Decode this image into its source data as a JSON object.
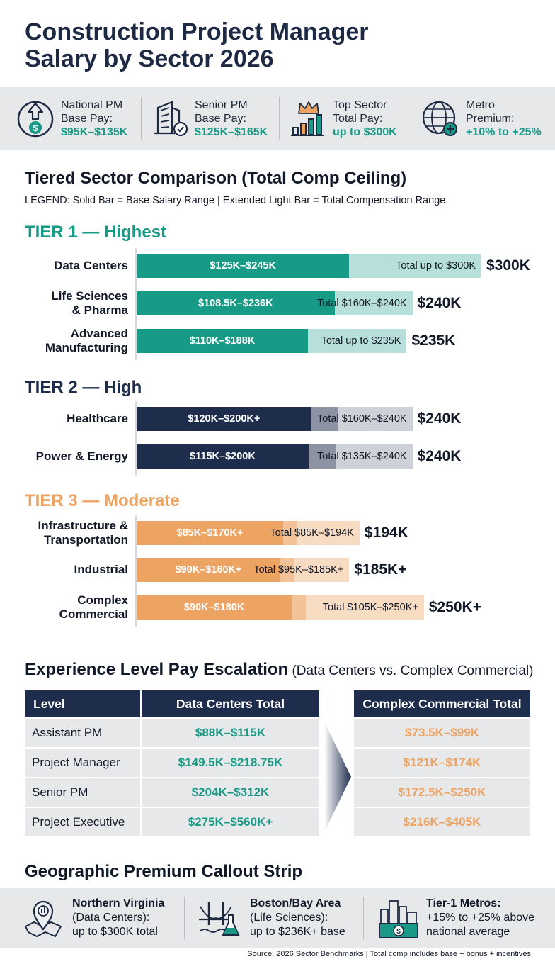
{
  "title": {
    "line1": "Construction Project Manager",
    "line2": "Salary by Sector 2026"
  },
  "stats": [
    {
      "icon": "money-up-icon",
      "l1": "National PM",
      "l2": "Base Pay:",
      "value": "$95K–$135K"
    },
    {
      "icon": "building-check-icon",
      "l1": "Senior PM",
      "l2": "Base Pay:",
      "value": "$125K–$165K"
    },
    {
      "icon": "crown-bar-chart-icon",
      "l1": "Top Sector",
      "l2": "Total Pay:",
      "value": "up to $300K"
    },
    {
      "icon": "globe-plus-icon",
      "l1": "Metro",
      "l2": "Premium:",
      "value": "+10% to +25%"
    }
  ],
  "chart_section": {
    "title": "Tiered Sector Comparison (Total Comp Ceiling)",
    "legend": "LEGEND: Solid Bar = Base Salary Range  |  Extended Light Bar = Total Compensation Range"
  },
  "colors": {
    "tier1": "#189b86",
    "tier1_light": "#b7e0da",
    "tier2": "#1f2d4d",
    "tier2_mid": "#8d93a3",
    "tier2_light": "#cfd1d8",
    "tier3": "#eda463",
    "tier3_light": "#f8dcc2"
  },
  "chart_data": {
    "type": "bar",
    "orientation": "horizontal",
    "unit": "$K",
    "tiers": [
      {
        "name": "TIER 1 — Highest",
        "color": "#189b86",
        "rows": [
          {
            "sector": [
              "Data Centers"
            ],
            "base": [
              125,
              245
            ],
            "total": [
              0,
              300
            ],
            "base_label": "$125K–$245K",
            "total_label": "Total up to $300K",
            "cap": "$300K"
          },
          {
            "sector": [
              "Life Sciences",
              "& Pharma"
            ],
            "base": [
              108.5,
              236
            ],
            "total": [
              160,
              240
            ],
            "base_label": "$108.5K–$236K",
            "total_label": "Total $160K–$240K",
            "cap": "$240K"
          },
          {
            "sector": [
              "Advanced",
              "Manufacturing"
            ],
            "base": [
              110,
              188
            ],
            "total": [
              0,
              235
            ],
            "base_label": "$110K–$188K",
            "total_label": "Total up to $235K",
            "cap": "$235K"
          }
        ]
      },
      {
        "name": "TIER 2 — High",
        "color": "#1f2d4d",
        "rows": [
          {
            "sector": [
              "Healthcare"
            ],
            "base": [
              120,
              200
            ],
            "total": [
              160,
              240
            ],
            "base_label": "$120K–$200K+",
            "total_label": "Total $160K–$240K",
            "cap": "$240K"
          },
          {
            "sector": [
              "Power & Energy"
            ],
            "base": [
              115,
              200
            ],
            "total": [
              135,
              240
            ],
            "base_label": "$115K–$200K",
            "total_label": "Total $135K–$240K",
            "cap": "$240K"
          }
        ]
      },
      {
        "name": "TIER 3 — Moderate",
        "color": "#eda463",
        "rows": [
          {
            "sector": [
              "Infrastructure &",
              "Transportation"
            ],
            "base": [
              85,
              170
            ],
            "total": [
              85,
              194
            ],
            "base_label": "$85K–$170K+",
            "total_label": "Total $85K–$194K",
            "cap": "$194K"
          },
          {
            "sector": [
              "Industrial"
            ],
            "base": [
              90,
              160
            ],
            "total": [
              95,
              185
            ],
            "base_label": "$90K–$160K+",
            "total_label": "Total $95K–$185K+",
            "cap": "$185K+"
          },
          {
            "sector": [
              "Complex",
              "Commercial"
            ],
            "base": [
              90,
              180
            ],
            "total": [
              105,
              250
            ],
            "base_label": "$90K–$180K",
            "total_label": "Total $105K–$250K+",
            "cap": "$250K+"
          }
        ]
      }
    ]
  },
  "experience": {
    "title": "Experience Level Pay Escalation",
    "subtitle": " (Data Centers vs. Complex Commercial)",
    "headers": [
      "Level",
      "Data Centers Total",
      "Complex Commercial Total"
    ],
    "rows": [
      {
        "level": "Assistant PM",
        "dc": "$88K–$115K",
        "cc": "$73.5K–$99K"
      },
      {
        "level": "Project Manager",
        "dc": "$149.5K–$218.75K",
        "cc": "$121K–$174K"
      },
      {
        "level": "Senior PM",
        "dc": "$204K–$312K",
        "cc": "$172.5K–$250K"
      },
      {
        "level": "Project Executive",
        "dc": "$275K–$560K+",
        "cc": "$216K–$405K"
      }
    ]
  },
  "geo": {
    "title": "Geographic Premium Callout Strip",
    "items": [
      {
        "icon": "map-pin-icon",
        "bold": "Northern Virginia",
        "l2": "(Data Centers):",
        "l3": "up to $300K total"
      },
      {
        "icon": "bridge-flask-icon",
        "bold": "Boston/Bay Area",
        "l2": "(Life Sciences):",
        "l3": "up to $236K+ base"
      },
      {
        "icon": "skyline-money-icon",
        "bold": "Tier-1 Metros:",
        "l2": "+15% to +25% above",
        "l3": "national average"
      }
    ]
  },
  "source": "Source: 2026 Sector Benchmarks | Total comp includes base + bonus + incentives"
}
